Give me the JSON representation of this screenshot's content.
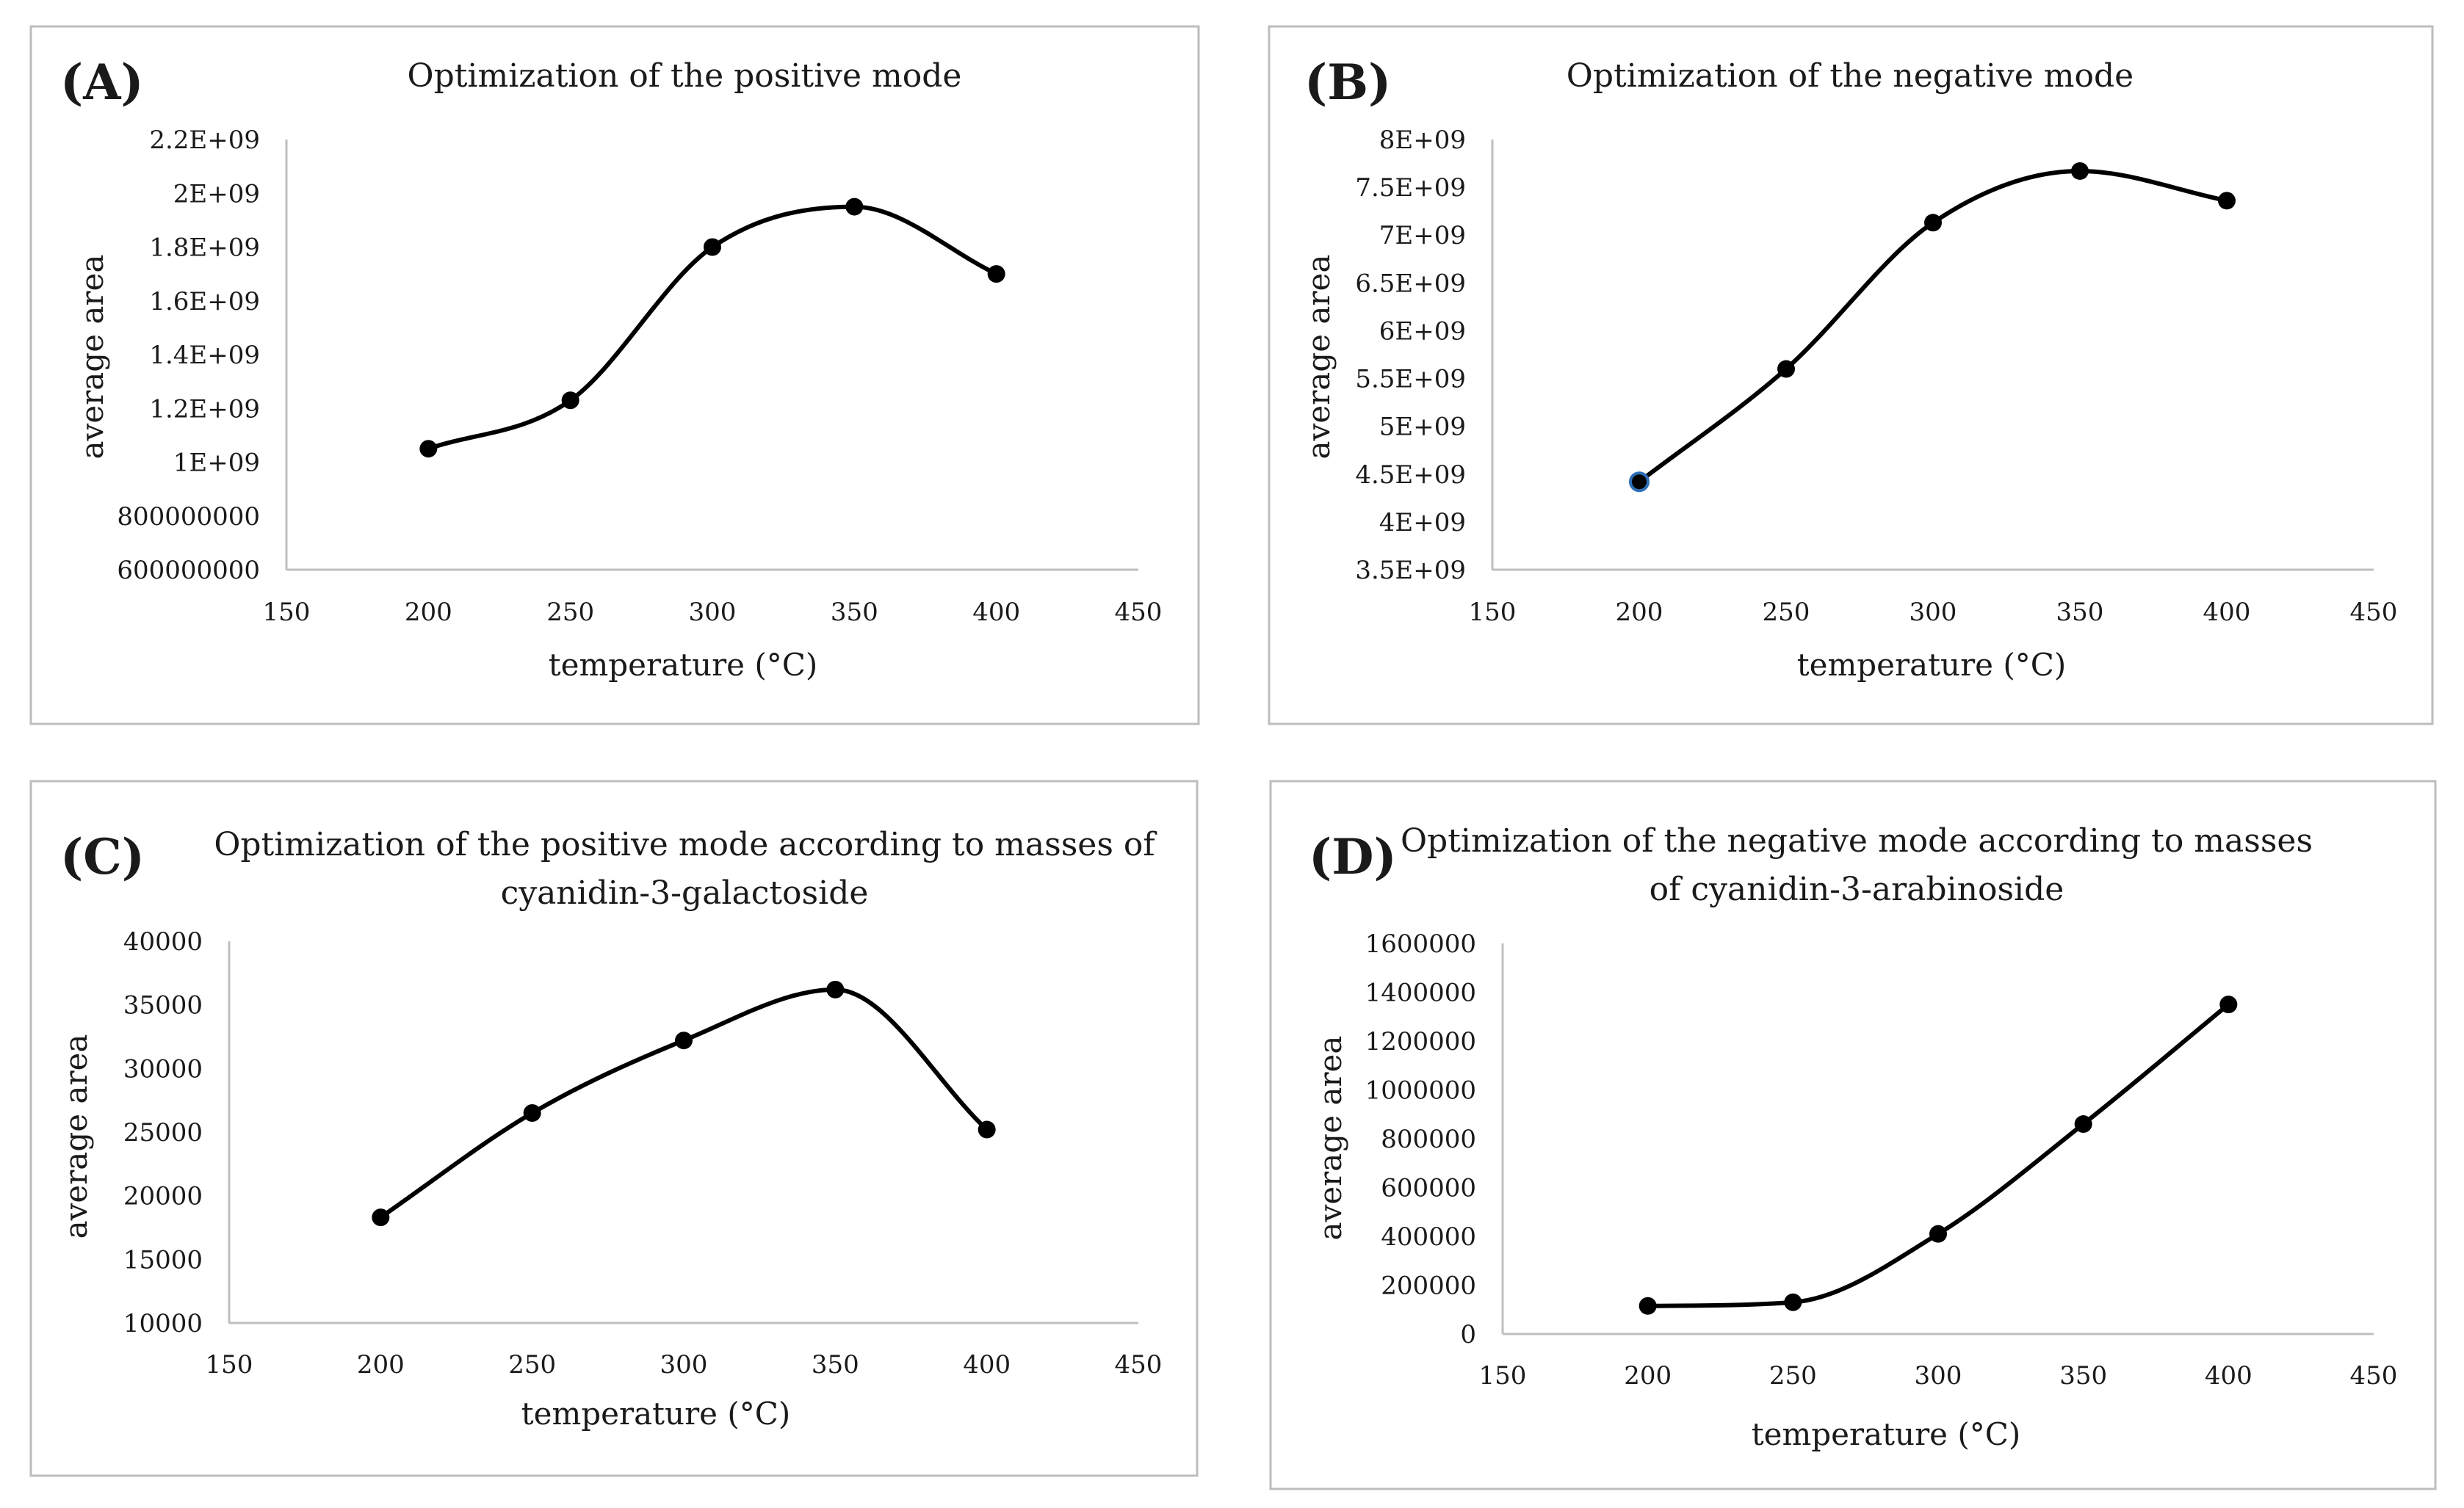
{
  "chart_data": [
    {
      "type": "line",
      "panel": "(A)",
      "title": "Optimization of the positive mode",
      "subtitle": "",
      "xlabel": "temperature (°C)",
      "ylabel": "average area",
      "xlim": [
        150,
        450
      ],
      "ylim": [
        600000000,
        2200000000
      ],
      "grid": false,
      "smooth": true,
      "xticks": [
        150,
        200,
        250,
        300,
        350,
        400,
        450
      ],
      "xtick_labels": [
        "150",
        "200",
        "250",
        "300",
        "350",
        "400",
        "450"
      ],
      "yticks": [
        600000000,
        800000000,
        1000000000,
        1200000000,
        1400000000,
        1600000000,
        1800000000,
        2000000000,
        2200000000
      ],
      "ytick_labels": [
        "600000000",
        "800000000",
        "1E+09",
        "1.2E+09",
        "1.4E+09",
        "1.6E+09",
        "1.8E+09",
        "2E+09",
        "2.2E+09"
      ],
      "series": [
        {
          "name": "average area",
          "x": [
            200,
            250,
            300,
            350,
            400
          ],
          "values": [
            1050000000,
            1230000000,
            1800000000,
            1950000000,
            1700000000
          ]
        }
      ]
    },
    {
      "type": "line",
      "panel": "(B)",
      "title": "Optimization of the negative mode",
      "subtitle": "",
      "xlabel": "temperature (°C)",
      "ylabel": "average area",
      "xlim": [
        150,
        450
      ],
      "ylim": [
        3500000000,
        8000000000
      ],
      "grid": false,
      "smooth": true,
      "xticks": [
        150,
        200,
        250,
        300,
        350,
        400,
        450
      ],
      "xtick_labels": [
        "150",
        "200",
        "250",
        "300",
        "350",
        "400",
        "450"
      ],
      "yticks": [
        3500000000,
        4000000000,
        4500000000,
        5000000000,
        5500000000,
        6000000000,
        6500000000,
        7000000000,
        7500000000,
        8000000000
      ],
      "ytick_labels": [
        "3.5E+09",
        "4E+09",
        "4.5E+09",
        "5E+09",
        "5.5E+09",
        "6E+09",
        "6.5E+09",
        "7E+09",
        "7.5E+09",
        "8E+09"
      ],
      "series": [
        {
          "name": "average area",
          "x": [
            200,
            250,
            300,
            350,
            400
          ],
          "values": [
            4420000000,
            5600000000,
            7130000000,
            7670000000,
            7360000000
          ]
        }
      ]
    },
    {
      "type": "line",
      "panel": "(C)",
      "title": "Optimization of the positive mode according to masses of",
      "subtitle": "cyanidin-3-galactoside",
      "xlabel": "temperature (°C)",
      "ylabel": "average area",
      "xlim": [
        150,
        450
      ],
      "ylim": [
        10000,
        40000
      ],
      "grid": false,
      "smooth": true,
      "xticks": [
        150,
        200,
        250,
        300,
        350,
        400,
        450
      ],
      "xtick_labels": [
        "150",
        "200",
        "250",
        "300",
        "350",
        "400",
        "450"
      ],
      "yticks": [
        10000,
        15000,
        20000,
        25000,
        30000,
        35000,
        40000
      ],
      "ytick_labels": [
        "10000",
        "15000",
        "20000",
        "25000",
        "30000",
        "35000",
        "40000"
      ],
      "series": [
        {
          "name": "average area",
          "x": [
            200,
            250,
            300,
            350,
            400
          ],
          "values": [
            18300,
            26500,
            32200,
            36200,
            25200
          ]
        }
      ]
    },
    {
      "type": "line",
      "panel": "(D)",
      "title": "Optimization of the negative mode according to masses",
      "subtitle": "of cyanidin-3-arabinoside",
      "xlabel": "temperature (°C)",
      "ylabel": "average area",
      "xlim": [
        150,
        450
      ],
      "ylim": [
        0,
        1600000
      ],
      "grid": false,
      "smooth": true,
      "xticks": [
        150,
        200,
        250,
        300,
        350,
        400,
        450
      ],
      "xtick_labels": [
        "150",
        "200",
        "250",
        "300",
        "350",
        "400",
        "450"
      ],
      "yticks": [
        0,
        200000,
        400000,
        600000,
        800000,
        1000000,
        1200000,
        1400000,
        1600000
      ],
      "ytick_labels": [
        "0",
        "200000",
        "400000",
        "600000",
        "800000",
        "1000000",
        "1200000",
        "1400000",
        "1600000"
      ],
      "series": [
        {
          "name": "average area",
          "x": [
            200,
            250,
            300,
            350,
            400
          ],
          "values": [
            115000,
            130000,
            410000,
            860000,
            1350000
          ]
        }
      ]
    }
  ]
}
